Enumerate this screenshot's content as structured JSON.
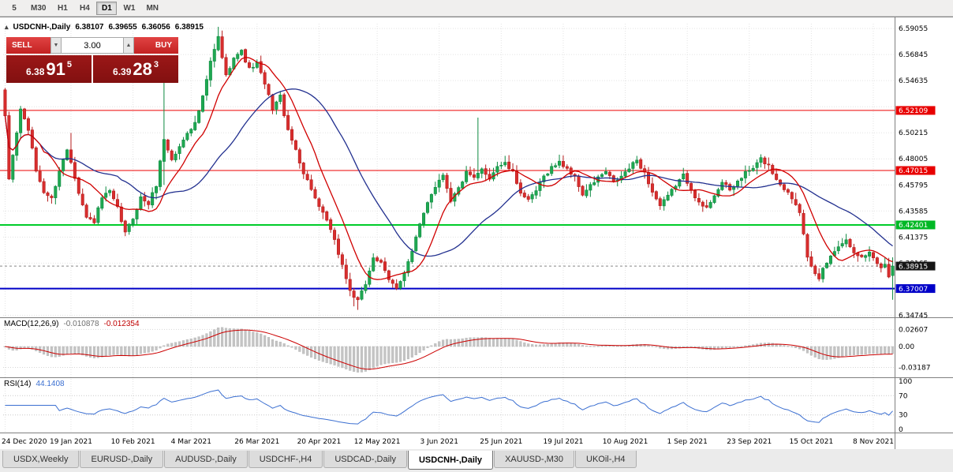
{
  "toolbar": {
    "periods": [
      {
        "label": "5",
        "active": false
      },
      {
        "label": "M30",
        "active": false
      },
      {
        "label": "H1",
        "active": false
      },
      {
        "label": "H4",
        "active": false
      },
      {
        "label": "D1",
        "active": true
      },
      {
        "label": "W1",
        "active": false
      },
      {
        "label": "MN",
        "active": false
      }
    ]
  },
  "header": {
    "collapse_icon": "▴",
    "symbol": "USDCNH-,Daily",
    "open": "6.38107",
    "high": "6.39655",
    "low": "6.36056",
    "close": "6.38915"
  },
  "trade_panel": {
    "sell_label": "SELL",
    "buy_label": "BUY",
    "volume": "3.00",
    "vol_down_icon": "▼",
    "vol_up_icon": "▲",
    "sell_price_big": "6.38",
    "sell_price_pips": "91",
    "sell_price_sup": "5",
    "buy_price_big": "6.39",
    "buy_price_pips": "28",
    "buy_price_sup": "3"
  },
  "indicators": {
    "macd_label": "MACD(12,26,9)",
    "macd_value": "-0.010878",
    "macd_signal": "-0.012354",
    "rsi_label": "RSI(14)",
    "rsi_value": "44.1408"
  },
  "tabs": [
    {
      "label": "USDX,Weekly",
      "active": false
    },
    {
      "label": "EURUSD-,Daily",
      "active": false
    },
    {
      "label": "AUDUSD-,Daily",
      "active": false
    },
    {
      "label": "USDCHF-,H4",
      "active": false
    },
    {
      "label": "USDCAD-,Daily",
      "active": false
    },
    {
      "label": "USDCNH-,Daily",
      "active": true
    },
    {
      "label": "XAUUSD-,M30",
      "active": false
    },
    {
      "label": "UKOil-,H4",
      "active": false
    }
  ],
  "chart_data": {
    "type": "candlestick",
    "symbol": "USDCNH",
    "timeframe": "Daily",
    "n_bars": 230,
    "price_axis": {
      "range": [
        6.3457,
        6.6
      ],
      "ticks": [
        {
          "v": 6.34745,
          "label": "6.34745"
        },
        {
          "v": 6.39165,
          "label": "6.39165"
        },
        {
          "v": 6.41375,
          "label": "6.41375"
        },
        {
          "v": 6.43585,
          "label": "6.43585"
        },
        {
          "v": 6.45795,
          "label": "6.45795"
        },
        {
          "v": 6.48005,
          "label": "6.48005"
        },
        {
          "v": 6.50215,
          "label": "6.50215"
        },
        {
          "v": 6.54635,
          "label": "6.54635"
        },
        {
          "v": 6.56845,
          "label": "6.56845"
        },
        {
          "v": 6.59055,
          "label": "6.59055"
        }
      ],
      "grid_only": [
        6.36955,
        6.52425
      ]
    },
    "levels": [
      {
        "value": 6.52109,
        "label": "6.52109",
        "color": "#ee0000",
        "width": 1,
        "badge_bg": "#e80000",
        "badge_fg": "#ffffff"
      },
      {
        "value": 6.47015,
        "label": "6.47015",
        "color": "#ee0000",
        "width": 1,
        "badge_bg": "#e80000",
        "badge_fg": "#ffffff"
      },
      {
        "value": 6.42401,
        "label": "6.42401",
        "color": "#00cc2a",
        "width": 2,
        "badge_bg": "#00b825",
        "badge_fg": "#ffffff"
      },
      {
        "value": 6.37007,
        "label": "6.37007",
        "color": "#0000c8",
        "width": 2,
        "badge_bg": "#0000c8",
        "badge_fg": "#ffffff"
      }
    ],
    "current_price": {
      "value": 6.38915,
      "label": "6.38915",
      "badge_bg": "#151515",
      "badge_fg": "#ffffff",
      "line_color": "#888888"
    },
    "x_labels": [
      {
        "bar": 0,
        "label": "24 Dec 2020"
      },
      {
        "bar": 17,
        "label": "19 Jan 2021"
      },
      {
        "bar": 33,
        "label": "10 Feb 2021"
      },
      {
        "bar": 48,
        "label": "4 Mar 2021"
      },
      {
        "bar": 65,
        "label": "26 Mar 2021"
      },
      {
        "bar": 81,
        "label": "20 Apr 2021"
      },
      {
        "bar": 96,
        "label": "12 May 2021"
      },
      {
        "bar": 112,
        "label": "3 Jun 2021"
      },
      {
        "bar": 128,
        "label": "25 Jun 2021"
      },
      {
        "bar": 144,
        "label": "19 Jul 2021"
      },
      {
        "bar": 160,
        "label": "10 Aug 2021"
      },
      {
        "bar": 176,
        "label": "1 Sep 2021"
      },
      {
        "bar": 192,
        "label": "23 Sep 2021"
      },
      {
        "bar": 208,
        "label": "15 Oct 2021"
      },
      {
        "bar": 224,
        "label": "8 Nov 2021"
      }
    ],
    "price_path": [
      [
        0,
        6.515
      ],
      [
        1,
        6.463
      ],
      [
        2,
        6.483
      ],
      [
        4,
        6.522
      ],
      [
        6,
        6.505
      ],
      [
        8,
        6.47
      ],
      [
        10,
        6.452
      ],
      [
        12,
        6.446
      ],
      [
        14,
        6.47
      ],
      [
        16,
        6.488
      ],
      [
        17,
        6.478
      ],
      [
        19,
        6.452
      ],
      [
        21,
        6.43
      ],
      [
        23,
        6.427
      ],
      [
        25,
        6.447
      ],
      [
        27,
        6.452
      ],
      [
        29,
        6.438
      ],
      [
        31,
        6.417
      ],
      [
        33,
        6.43
      ],
      [
        35,
        6.447
      ],
      [
        37,
        6.442
      ],
      [
        39,
        6.458
      ],
      [
        41,
        6.497
      ],
      [
        43,
        6.479
      ],
      [
        45,
        6.49
      ],
      [
        47,
        6.503
      ],
      [
        49,
        6.51
      ],
      [
        51,
        6.532
      ],
      [
        53,
        6.562
      ],
      [
        55,
        6.583
      ],
      [
        57,
        6.55
      ],
      [
        59,
        6.567
      ],
      [
        61,
        6.571
      ],
      [
        63,
        6.556
      ],
      [
        65,
        6.561
      ],
      [
        67,
        6.543
      ],
      [
        69,
        6.523
      ],
      [
        71,
        6.533
      ],
      [
        73,
        6.503
      ],
      [
        75,
        6.488
      ],
      [
        77,
        6.468
      ],
      [
        79,
        6.455
      ],
      [
        81,
        6.438
      ],
      [
        83,
        6.428
      ],
      [
        85,
        6.41
      ],
      [
        87,
        6.39
      ],
      [
        89,
        6.368
      ],
      [
        91,
        6.359
      ],
      [
        93,
        6.374
      ],
      [
        95,
        6.397
      ],
      [
        97,
        6.391
      ],
      [
        99,
        6.377
      ],
      [
        101,
        6.371
      ],
      [
        103,
        6.384
      ],
      [
        105,
        6.401
      ],
      [
        107,
        6.424
      ],
      [
        109,
        6.444
      ],
      [
        111,
        6.457
      ],
      [
        113,
        6.467
      ],
      [
        115,
        6.445
      ],
      [
        117,
        6.455
      ],
      [
        119,
        6.468
      ],
      [
        121,
        6.463
      ],
      [
        123,
        6.471
      ],
      [
        125,
        6.464
      ],
      [
        127,
        6.474
      ],
      [
        129,
        6.476
      ],
      [
        131,
        6.468
      ],
      [
        133,
        6.452
      ],
      [
        135,
        6.444
      ],
      [
        137,
        6.453
      ],
      [
        139,
        6.465
      ],
      [
        141,
        6.473
      ],
      [
        143,
        6.477
      ],
      [
        145,
        6.472
      ],
      [
        147,
        6.464
      ],
      [
        149,
        6.45
      ],
      [
        151,
        6.457
      ],
      [
        153,
        6.464
      ],
      [
        155,
        6.469
      ],
      [
        157,
        6.46
      ],
      [
        159,
        6.465
      ],
      [
        161,
        6.472
      ],
      [
        163,
        6.479
      ],
      [
        165,
        6.468
      ],
      [
        167,
        6.452
      ],
      [
        169,
        6.44
      ],
      [
        171,
        6.448
      ],
      [
        173,
        6.458
      ],
      [
        175,
        6.466
      ],
      [
        177,
        6.455
      ],
      [
        179,
        6.442
      ],
      [
        181,
        6.438
      ],
      [
        183,
        6.45
      ],
      [
        185,
        6.46
      ],
      [
        187,
        6.453
      ],
      [
        189,
        6.461
      ],
      [
        191,
        6.468
      ],
      [
        193,
        6.472
      ],
      [
        195,
        6.48
      ],
      [
        197,
        6.474
      ],
      [
        199,
        6.463
      ],
      [
        201,
        6.455
      ],
      [
        203,
        6.447
      ],
      [
        205,
        6.436
      ],
      [
        206,
        6.418
      ],
      [
        207,
        6.398
      ],
      [
        208,
        6.388
      ],
      [
        209,
        6.381
      ],
      [
        210,
        6.377
      ],
      [
        211,
        6.387
      ],
      [
        213,
        6.397
      ],
      [
        215,
        6.407
      ],
      [
        217,
        6.411
      ],
      [
        219,
        6.402
      ],
      [
        221,
        6.396
      ],
      [
        223,
        6.401
      ],
      [
        225,
        6.392
      ],
      [
        226,
        6.387
      ],
      [
        227,
        6.391
      ],
      [
        228,
        6.381
      ],
      [
        229,
        6.38915
      ]
    ],
    "spikes": [
      {
        "bar": 17,
        "high": 6.502
      },
      {
        "bar": 41,
        "high": 6.552,
        "low": 6.458
      },
      {
        "bar": 55,
        "high": 6.592
      },
      {
        "bar": 56,
        "high": 6.588
      },
      {
        "bar": 90,
        "low": 6.355
      },
      {
        "bar": 91,
        "low": 6.352
      },
      {
        "bar": 122,
        "high": 6.515
      }
    ],
    "last_bar": {
      "open": 6.38107,
      "high": 6.39655,
      "low": 6.36056,
      "close": 6.38915
    },
    "moving_averages": [
      {
        "period": 10,
        "color": "#d00000"
      },
      {
        "period": 30,
        "color": "#22308f"
      }
    ],
    "macd": {
      "fast": 12,
      "slow": 26,
      "signal": 9,
      "hist_color": "#c4c4c4",
      "hist_stroke": "#a9a9a9",
      "signal_color": "#cc0000",
      "range": [
        -0.042,
        0.035
      ],
      "axis_ticks": [
        {
          "v": 0.02607,
          "label": "0.02607"
        },
        {
          "v": 0,
          "label": "0.00"
        },
        {
          "v": -0.03187,
          "label": "-0.03187"
        }
      ]
    },
    "rsi": {
      "period": 14,
      "color": "#3b6fd1",
      "levels": [
        70,
        30
      ],
      "range": [
        0,
        100
      ],
      "axis_ticks": [
        {
          "v": 100,
          "label": "100"
        },
        {
          "v": 70,
          "label": "70"
        },
        {
          "v": 30,
          "label": "30"
        },
        {
          "v": 0,
          "label": "0"
        }
      ]
    },
    "colors": {
      "up": "#0d8a41",
      "up_fill": "#1fa851",
      "down": "#b51d1d",
      "down_fill": "#d82e2e",
      "grid": "#e3e3e3",
      "separator": "#808080",
      "axis_text": "#000000"
    }
  }
}
